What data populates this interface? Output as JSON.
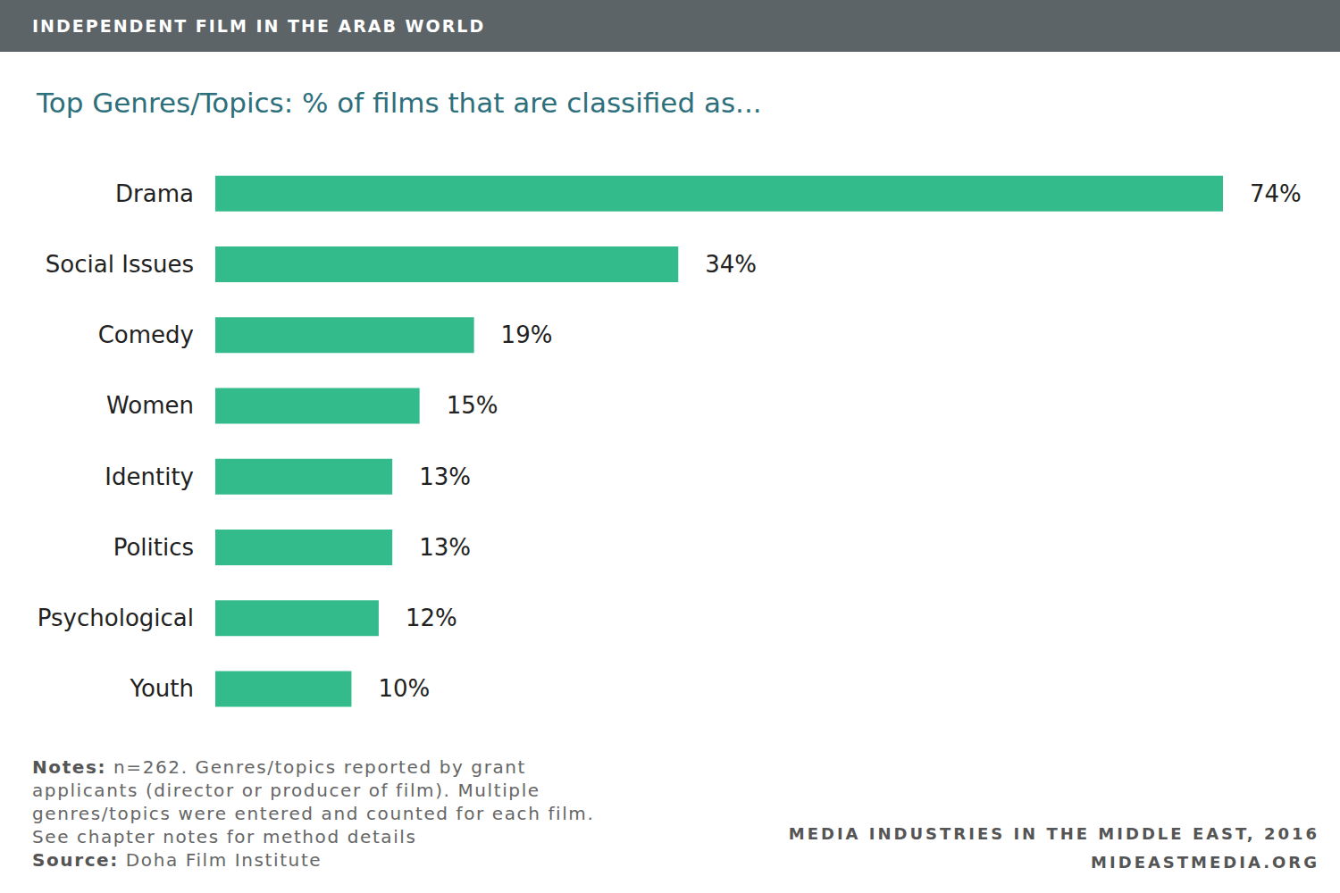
{
  "header": "INDEPENDENT FILM IN THE ARAB WORLD",
  "chart_data": {
    "type": "bar",
    "orientation": "horizontal",
    "title": "Top Genres/Topics: % of films that are classified as...",
    "categories": [
      "Drama",
      "Social Issues",
      "Comedy",
      "Women",
      "Identity",
      "Politics",
      "Psychological",
      "Youth"
    ],
    "values": [
      74,
      34,
      19,
      15,
      13,
      13,
      12,
      10
    ],
    "value_labels": [
      "74%",
      "34%",
      "19%",
      "15%",
      "13%",
      "13%",
      "12%",
      "10%"
    ],
    "color": "#33bb8c",
    "xlim": [
      0,
      74
    ],
    "data_labels": true,
    "tick_labels": "y",
    "grid": false
  },
  "notes": {
    "label": "Notes:",
    "text": "n=262. Genres/topics reported by grant applicants (director or producer of film). Multiple genres/topics were entered and counted for each film. See chapter notes for method details"
  },
  "source": {
    "label": "Source:",
    "text": "Doha Film Institute"
  },
  "footer": [
    "MEDIA INDUSTRIES IN THE MIDDLE EAST, 2016",
    "MIDEASTMEDIA.ORG"
  ]
}
